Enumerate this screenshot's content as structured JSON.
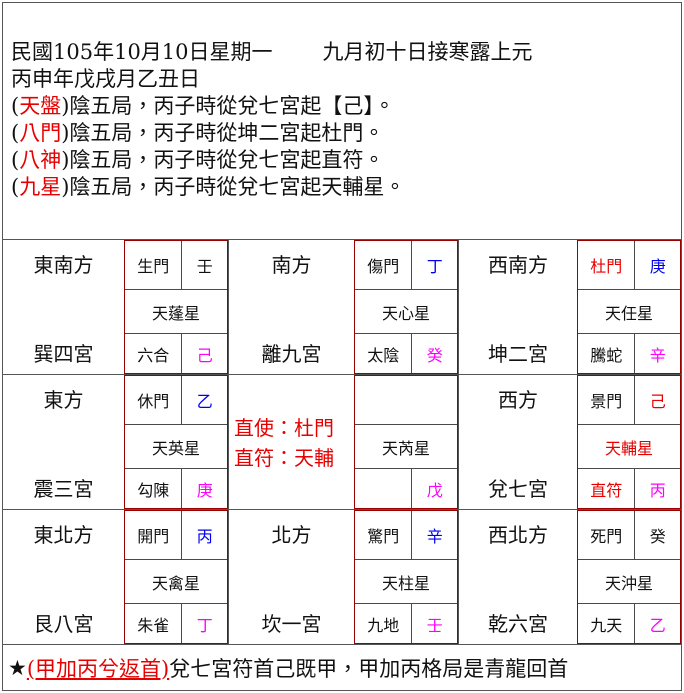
{
  "header": {
    "date_line": {
      "left": "民國105年10月10日星期一",
      "right": "九月初十日接寒露上元"
    },
    "ganzhi_line": "丙申年戊戌月乙丑日",
    "paren_open": "(",
    "paren_close": ")",
    "config_lines": [
      {
        "tag": "天盤",
        "text": "陰五局，丙子時從兌七宮起【己】。"
      },
      {
        "tag": "八門",
        "text": "陰五局，丙子時從坤二宮起杜門。"
      },
      {
        "tag": "八神",
        "text": "陰五局，丙子時從兌七宮起直符。"
      },
      {
        "tag": "九星",
        "text": "陰五局，丙子時從兌七宮起天輔星。"
      }
    ]
  },
  "palaces": [
    {
      "id": "xun-4",
      "direction": "東南方",
      "palace": "巽四宮",
      "door": {
        "text": "生門",
        "color": "black"
      },
      "stem_top": {
        "text": "壬",
        "color": "black"
      },
      "star": {
        "text": "天蓬星",
        "color": "black"
      },
      "deity": {
        "text": "六合",
        "color": "black"
      },
      "stem_bottom": {
        "text": "己",
        "color": "magenta"
      }
    },
    {
      "id": "li-9",
      "direction": "南方",
      "palace": "離九宮",
      "door": {
        "text": "傷門",
        "color": "black"
      },
      "stem_top": {
        "text": "丁",
        "color": "blue"
      },
      "star": {
        "text": "天心星",
        "color": "black"
      },
      "deity": {
        "text": "太陰",
        "color": "black"
      },
      "stem_bottom": {
        "text": "癸",
        "color": "magenta"
      }
    },
    {
      "id": "kun-2",
      "direction": "西南方",
      "palace": "坤二宮",
      "door": {
        "text": "杜門",
        "color": "red"
      },
      "stem_top": {
        "text": "庚",
        "color": "blue"
      },
      "star": {
        "text": "天任星",
        "color": "black"
      },
      "deity": {
        "text": "騰蛇",
        "color": "black"
      },
      "stem_bottom": {
        "text": "辛",
        "color": "magenta"
      }
    },
    {
      "id": "zhen-3",
      "direction": "東方",
      "palace": "震三宮",
      "door": {
        "text": "休門",
        "color": "black"
      },
      "stem_top": {
        "text": "乙",
        "color": "blue"
      },
      "star": {
        "text": "天英星",
        "color": "black"
      },
      "deity": {
        "text": "勾陳",
        "color": "black"
      },
      "stem_bottom": {
        "text": "庚",
        "color": "magenta"
      }
    },
    {
      "id": "center-5",
      "type": "center",
      "lines": [
        "直使：杜門",
        "直符：天輔"
      ],
      "door": {
        "text": "",
        "color": "black"
      },
      "star": {
        "text": "天芮星",
        "color": "black"
      },
      "deity": {
        "text": "",
        "color": "black"
      },
      "stem_bottom": {
        "text": "戊",
        "color": "magenta"
      }
    },
    {
      "id": "dui-7",
      "direction": "西方",
      "palace": "兌七宮",
      "door": {
        "text": "景門",
        "color": "black"
      },
      "stem_top": {
        "text": "己",
        "color": "red"
      },
      "star": {
        "text": "天輔星",
        "color": "red"
      },
      "deity": {
        "text": "直符",
        "color": "red"
      },
      "stem_bottom": {
        "text": "丙",
        "color": "magenta"
      }
    },
    {
      "id": "gen-8",
      "direction": "東北方",
      "palace": "艮八宮",
      "door": {
        "text": "開門",
        "color": "black"
      },
      "stem_top": {
        "text": "丙",
        "color": "blue"
      },
      "star": {
        "text": "天禽星",
        "color": "black"
      },
      "deity": {
        "text": "朱雀",
        "color": "black"
      },
      "stem_bottom": {
        "text": "丁",
        "color": "magenta"
      }
    },
    {
      "id": "kan-1",
      "direction": "北方",
      "palace": "坎一宮",
      "door": {
        "text": "驚門",
        "color": "black"
      },
      "stem_top": {
        "text": "辛",
        "color": "blue"
      },
      "star": {
        "text": "天柱星",
        "color": "black"
      },
      "deity": {
        "text": "九地",
        "color": "black"
      },
      "stem_bottom": {
        "text": "壬",
        "color": "magenta"
      }
    },
    {
      "id": "qian-6",
      "direction": "西北方",
      "palace": "乾六宮",
      "door": {
        "text": "死門",
        "color": "black"
      },
      "stem_top": {
        "text": "癸",
        "color": "black"
      },
      "star": {
        "text": "天沖星",
        "color": "black"
      },
      "deity": {
        "text": "九天",
        "color": "black"
      },
      "stem_bottom": {
        "text": "乙",
        "color": "magenta"
      }
    }
  ],
  "footer": {
    "star": "★",
    "red_part": "(甲加丙兮返首)",
    "rest": "兌七宮符首己既甲，甲加丙格局是青龍回首"
  },
  "colors": {
    "red": "#e60000",
    "blue": "#0000ee",
    "magenta": "#ff00ff",
    "subtable_border": "#990000",
    "grid_border": "#555555"
  }
}
